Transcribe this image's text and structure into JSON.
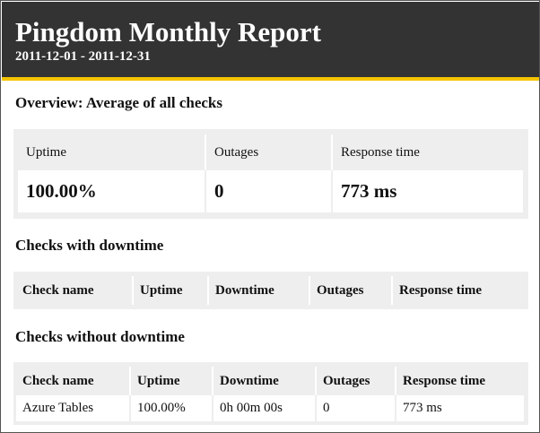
{
  "header": {
    "title": "Pingdom Monthly Report",
    "date_range": "2011-12-01 - 2011-12-31"
  },
  "colors": {
    "header_bg": "#333333",
    "accent_stripe": "#f5c400",
    "panel_bg": "#eeeeee"
  },
  "overview": {
    "title": "Overview: Average of all checks",
    "columns": [
      "Uptime",
      "Outages",
      "Response time"
    ],
    "values": [
      "100.00%",
      "0",
      "773 ms"
    ]
  },
  "with_downtime": {
    "title": "Checks with downtime",
    "columns": [
      "Check name",
      "Uptime",
      "Downtime",
      "Outages",
      "Response time"
    ],
    "rows": []
  },
  "without_downtime": {
    "title": "Checks without downtime",
    "columns": [
      "Check name",
      "Uptime",
      "Downtime",
      "Outages",
      "Response time"
    ],
    "rows": [
      [
        "Azure Tables",
        "100.00%",
        "0h 00m 00s",
        "0",
        "773 ms"
      ]
    ]
  }
}
